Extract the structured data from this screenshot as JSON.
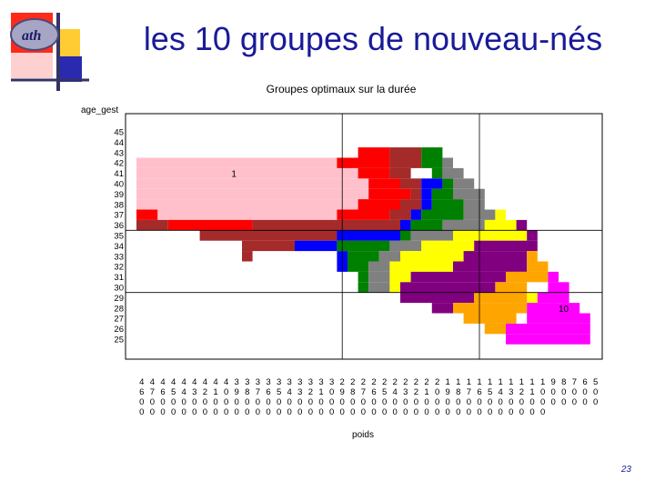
{
  "slide": {
    "title": "les 10 groupes de nouveau-nés",
    "page_number": "23",
    "logo_text": "ath",
    "accent_colors": [
      "#ff0000",
      "#0000cc",
      "#ffcc33"
    ]
  },
  "chart_data": {
    "type": "heatmap",
    "title": "Groupes optimaux sur la durée",
    "xlabel": "poids",
    "ylabel": "age_gest",
    "x_categories": [
      4600,
      4700,
      4600,
      4500,
      4400,
      4300,
      4200,
      4100,
      4000,
      3900,
      3800,
      3700,
      3600,
      3500,
      3400,
      3300,
      3200,
      3100,
      3000,
      2900,
      2800,
      2700,
      2600,
      2500,
      2400,
      2300,
      2200,
      2100,
      2000,
      1900,
      1800,
      1700,
      1600,
      1500,
      1400,
      1300,
      1200,
      1100,
      1000,
      900,
      800,
      700,
      600,
      500
    ],
    "y_categories": [
      45,
      44,
      43,
      42,
      41,
      40,
      39,
      38,
      37,
      36,
      35,
      34,
      33,
      32,
      31,
      30,
      29,
      28,
      27,
      26,
      25
    ],
    "group_colors": [
      "#ffc0cb",
      "#ff0000",
      "#a52a2a",
      "#0000ff",
      "#008000",
      "#808080",
      "#ffff00",
      "#800080",
      "#ffa500",
      "#ff00ff"
    ],
    "annotations": [
      {
        "text": "1",
        "group": 1
      },
      {
        "text": "10",
        "group": 10
      }
    ],
    "groups": [
      {
        "group": 1,
        "color": "#ffc0cb",
        "cells": [
          {
            "age": 42,
            "x_from": 0,
            "x_to": 19
          },
          {
            "age": 41,
            "x_from": 0,
            "x_to": 21
          },
          {
            "age": 40,
            "x_from": 0,
            "x_to": 22
          },
          {
            "age": 39,
            "x_from": 0,
            "x_to": 22
          },
          {
            "age": 38,
            "x_from": 0,
            "x_to": 21
          },
          {
            "age": 37,
            "x_from": 2,
            "x_to": 19
          }
        ]
      },
      {
        "group": 2,
        "color": "#ff0000",
        "cells": [
          {
            "age": 43,
            "x_from": 21,
            "x_to": 24
          },
          {
            "age": 42,
            "x_from": 19,
            "x_to": 24
          },
          {
            "age": 41,
            "x_from": 21,
            "x_to": 24
          },
          {
            "age": 40,
            "x_from": 22,
            "x_to": 25
          },
          {
            "age": 39,
            "x_from": 22,
            "x_to": 26
          },
          {
            "age": 38,
            "x_from": 21,
            "x_to": 25
          },
          {
            "age": 37,
            "x_from": 0,
            "x_to": 2
          },
          {
            "age": 37,
            "x_from": 19,
            "x_to": 24
          },
          {
            "age": 36,
            "x_from": 3,
            "x_to": 11
          }
        ]
      },
      {
        "group": 3,
        "color": "#a52a2a",
        "cells": [
          {
            "age": 43,
            "x_from": 24,
            "x_to": 27
          },
          {
            "age": 42,
            "x_from": 24,
            "x_to": 27
          },
          {
            "age": 41,
            "x_from": 24,
            "x_to": 26
          },
          {
            "age": 40,
            "x_from": 25,
            "x_to": 27
          },
          {
            "age": 39,
            "x_from": 26,
            "x_to": 27
          },
          {
            "age": 38,
            "x_from": 25,
            "x_to": 27
          },
          {
            "age": 37,
            "x_from": 24,
            "x_to": 26
          },
          {
            "age": 36,
            "x_from": 0,
            "x_to": 3
          },
          {
            "age": 36,
            "x_from": 11,
            "x_to": 25
          },
          {
            "age": 35,
            "x_from": 6,
            "x_to": 25
          },
          {
            "age": 34,
            "x_from": 10,
            "x_to": 15
          },
          {
            "age": 33,
            "x_from": 10,
            "x_to": 11
          }
        ]
      },
      {
        "group": 4,
        "color": "#0000ff",
        "cells": [
          {
            "age": 40,
            "x_from": 27,
            "x_to": 29
          },
          {
            "age": 39,
            "x_from": 27,
            "x_to": 28
          },
          {
            "age": 38,
            "x_from": 27,
            "x_to": 28
          },
          {
            "age": 37,
            "x_from": 26,
            "x_to": 27
          },
          {
            "age": 36,
            "x_from": 25,
            "x_to": 26
          },
          {
            "age": 35,
            "x_from": 19,
            "x_to": 25
          },
          {
            "age": 34,
            "x_from": 15,
            "x_to": 19
          },
          {
            "age": 33,
            "x_from": 19,
            "x_to": 20
          },
          {
            "age": 32,
            "x_from": 19,
            "x_to": 20
          }
        ]
      },
      {
        "group": 5,
        "color": "#008000",
        "cells": [
          {
            "age": 43,
            "x_from": 27,
            "x_to": 29
          },
          {
            "age": 42,
            "x_from": 27,
            "x_to": 29
          },
          {
            "age": 41,
            "x_from": 28,
            "x_to": 29
          },
          {
            "age": 40,
            "x_from": 29,
            "x_to": 30
          },
          {
            "age": 39,
            "x_from": 28,
            "x_to": 30
          },
          {
            "age": 38,
            "x_from": 28,
            "x_to": 31
          },
          {
            "age": 37,
            "x_from": 27,
            "x_to": 31
          },
          {
            "age": 36,
            "x_from": 26,
            "x_to": 29
          },
          {
            "age": 35,
            "x_from": 25,
            "x_to": 26
          },
          {
            "age": 34,
            "x_from": 19,
            "x_to": 24
          },
          {
            "age": 33,
            "x_from": 20,
            "x_to": 23
          },
          {
            "age": 32,
            "x_from": 20,
            "x_to": 22
          },
          {
            "age": 31,
            "x_from": 21,
            "x_to": 22
          },
          {
            "age": 30,
            "x_from": 21,
            "x_to": 22
          }
        ]
      },
      {
        "group": 6,
        "color": "#808080",
        "cells": [
          {
            "age": 42,
            "x_from": 29,
            "x_to": 30
          },
          {
            "age": 41,
            "x_from": 29,
            "x_to": 31
          },
          {
            "age": 40,
            "x_from": 30,
            "x_to": 32
          },
          {
            "age": 39,
            "x_from": 30,
            "x_to": 33
          },
          {
            "age": 38,
            "x_from": 31,
            "x_to": 33
          },
          {
            "age": 37,
            "x_from": 31,
            "x_to": 34
          },
          {
            "age": 36,
            "x_from": 29,
            "x_to": 33
          },
          {
            "age": 35,
            "x_from": 26,
            "x_to": 30
          },
          {
            "age": 34,
            "x_from": 24,
            "x_to": 27
          },
          {
            "age": 33,
            "x_from": 23,
            "x_to": 25
          },
          {
            "age": 32,
            "x_from": 22,
            "x_to": 24
          },
          {
            "age": 31,
            "x_from": 22,
            "x_to": 24
          },
          {
            "age": 30,
            "x_from": 22,
            "x_to": 24
          }
        ]
      },
      {
        "group": 7,
        "color": "#ffff00",
        "cells": [
          {
            "age": 37,
            "x_from": 34,
            "x_to": 35
          },
          {
            "age": 36,
            "x_from": 33,
            "x_to": 36
          },
          {
            "age": 35,
            "x_from": 30,
            "x_to": 37
          },
          {
            "age": 34,
            "x_from": 27,
            "x_to": 32
          },
          {
            "age": 33,
            "x_from": 25,
            "x_to": 31
          },
          {
            "age": 32,
            "x_from": 24,
            "x_to": 30
          },
          {
            "age": 31,
            "x_from": 24,
            "x_to": 26
          },
          {
            "age": 30,
            "x_from": 24,
            "x_to": 25
          },
          {
            "age": 29,
            "x_from": 37,
            "x_to": 38
          }
        ]
      },
      {
        "group": 8,
        "color": "#800080",
        "cells": [
          {
            "age": 36,
            "x_from": 36,
            "x_to": 37
          },
          {
            "age": 35,
            "x_from": 37,
            "x_to": 38
          },
          {
            "age": 34,
            "x_from": 32,
            "x_to": 38
          },
          {
            "age": 33,
            "x_from": 31,
            "x_to": 37
          },
          {
            "age": 32,
            "x_from": 30,
            "x_to": 37
          },
          {
            "age": 31,
            "x_from": 26,
            "x_to": 35
          },
          {
            "age": 30,
            "x_from": 25,
            "x_to": 34
          },
          {
            "age": 29,
            "x_from": 25,
            "x_to": 32
          },
          {
            "age": 28,
            "x_from": 28,
            "x_to": 30
          }
        ]
      },
      {
        "group": 9,
        "color": "#ffa500",
        "cells": [
          {
            "age": 33,
            "x_from": 37,
            "x_to": 38
          },
          {
            "age": 32,
            "x_from": 37,
            "x_to": 39
          },
          {
            "age": 31,
            "x_from": 35,
            "x_to": 39
          },
          {
            "age": 30,
            "x_from": 34,
            "x_to": 37
          },
          {
            "age": 29,
            "x_from": 32,
            "x_to": 37
          },
          {
            "age": 28,
            "x_from": 30,
            "x_to": 37
          },
          {
            "age": 27,
            "x_from": 31,
            "x_to": 36
          },
          {
            "age": 26,
            "x_from": 33,
            "x_to": 35
          }
        ]
      },
      {
        "group": 10,
        "color": "#ff00ff",
        "cells": [
          {
            "age": 31,
            "x_from": 39,
            "x_to": 40
          },
          {
            "age": 30,
            "x_from": 39,
            "x_to": 41
          },
          {
            "age": 29,
            "x_from": 38,
            "x_to": 41
          },
          {
            "age": 28,
            "x_from": 37,
            "x_to": 42
          },
          {
            "age": 27,
            "x_from": 37,
            "x_to": 43
          },
          {
            "age": 26,
            "x_from": 35,
            "x_to": 43
          },
          {
            "age": 25,
            "x_from": 35,
            "x_to": 43
          }
        ]
      }
    ],
    "reference_lines": {
      "x_values": [
        2900,
        1600
      ],
      "y_values": [
        36,
        30
      ]
    },
    "grid": false,
    "legend": "none"
  }
}
